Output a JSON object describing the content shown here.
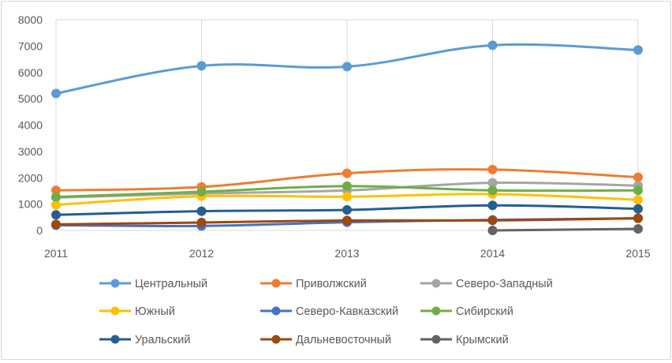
{
  "chart_data": {
    "type": "line",
    "title": "",
    "xlabel": "",
    "ylabel": "",
    "x": [
      "2011",
      "2012",
      "2013",
      "2014",
      "2015"
    ],
    "ylim": [
      0,
      8000
    ],
    "yticks": [
      "0",
      "1000",
      "2000",
      "3000",
      "4000",
      "5000",
      "6000",
      "7000",
      "8000"
    ],
    "grid": "vertical",
    "legend_position": "bottom",
    "series": [
      {
        "name": "Центральный",
        "color": "#5b9bd5",
        "values": [
          5200,
          6250,
          6220,
          7030,
          6850
        ]
      },
      {
        "name": "Приволжский",
        "color": "#ed7d31",
        "values": [
          1520,
          1650,
          2170,
          2310,
          2020
        ]
      },
      {
        "name": "Северо-Западный",
        "color": "#a5a5a5",
        "values": [
          1250,
          1400,
          1520,
          1810,
          1700
        ]
      },
      {
        "name": "Южный",
        "color": "#ffc000",
        "values": [
          970,
          1300,
          1280,
          1380,
          1160
        ]
      },
      {
        "name": "Северо-Кавказский",
        "color": "#4472c4",
        "values": [
          200,
          170,
          310,
          400,
          460
        ]
      },
      {
        "name": "Сибирский",
        "color": "#70ad47",
        "values": [
          1270,
          1470,
          1680,
          1520,
          1520
        ]
      },
      {
        "name": "Уральский",
        "color": "#255e91",
        "values": [
          590,
          730,
          780,
          950,
          820
        ]
      },
      {
        "name": "Дальневосточный",
        "color": "#9e480e",
        "values": [
          230,
          300,
          380,
          380,
          460
        ]
      },
      {
        "name": "Крымский",
        "color": "#636363",
        "values": [
          null,
          null,
          null,
          0,
          60
        ]
      }
    ]
  }
}
